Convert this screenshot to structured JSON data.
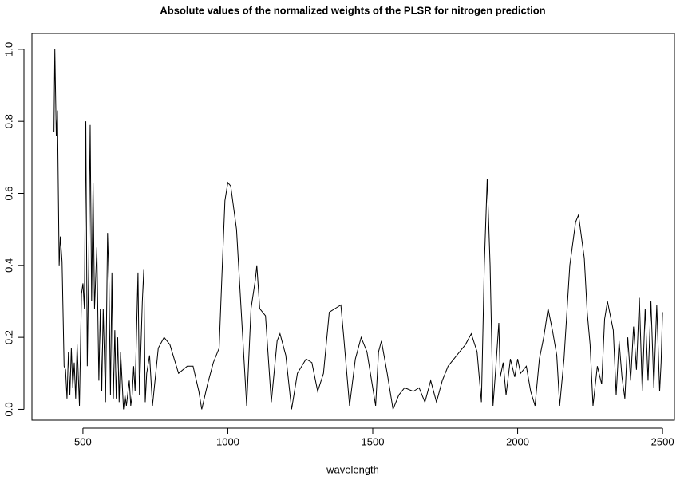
{
  "chart_data": {
    "type": "line",
    "title": "Absolute values of the normalized weights of the PLSR for nitrogen prediction",
    "x_label": "wavelength",
    "x": [
      400,
      403,
      408,
      412,
      418,
      422,
      428,
      435,
      440,
      445,
      450,
      455,
      460,
      465,
      470,
      475,
      480,
      488,
      495,
      500,
      505,
      510,
      515,
      520,
      525,
      530,
      535,
      540,
      548,
      555,
      560,
      565,
      570,
      578,
      585,
      590,
      595,
      600,
      605,
      610,
      615,
      620,
      625,
      630,
      640,
      645,
      650,
      660,
      665,
      670,
      675,
      680,
      690,
      695,
      705,
      710,
      715,
      720,
      730,
      740,
      760,
      780,
      800,
      830,
      860,
      880,
      900,
      910,
      930,
      950,
      970,
      980,
      990,
      1000,
      1010,
      1030,
      1050,
      1065,
      1080,
      1095,
      1100,
      1110,
      1130,
      1150,
      1170,
      1180,
      1200,
      1220,
      1240,
      1270,
      1290,
      1310,
      1330,
      1350,
      1370,
      1390,
      1400,
      1420,
      1440,
      1460,
      1480,
      1500,
      1510,
      1520,
      1530,
      1550,
      1570,
      1590,
      1610,
      1640,
      1660,
      1680,
      1700,
      1720,
      1740,
      1760,
      1780,
      1800,
      1820,
      1840,
      1860,
      1875,
      1885,
      1895,
      1905,
      1915,
      1925,
      1935,
      1940,
      1950,
      1960,
      1975,
      1990,
      2000,
      2010,
      2030,
      2045,
      2060,
      2075,
      2090,
      2105,
      2120,
      2135,
      2145,
      2160,
      2180,
      2200,
      2210,
      2230,
      2240,
      2250,
      2260,
      2275,
      2290,
      2300,
      2310,
      2320,
      2330,
      2340,
      2350,
      2360,
      2370,
      2380,
      2390,
      2400,
      2410,
      2420,
      2430,
      2440,
      2450,
      2460,
      2470,
      2480,
      2490,
      2495,
      2500
    ],
    "series": [
      {
        "color": "#000000",
        "values": [
          0.77,
          1.0,
          0.76,
          0.83,
          0.4,
          0.48,
          0.41,
          0.12,
          0.11,
          0.03,
          0.16,
          0.04,
          0.17,
          0.06,
          0.13,
          0.03,
          0.18,
          0.01,
          0.32,
          0.35,
          0.28,
          0.8,
          0.12,
          0.4,
          0.79,
          0.3,
          0.63,
          0.28,
          0.45,
          0.08,
          0.28,
          0.05,
          0.28,
          0.02,
          0.49,
          0.35,
          0.04,
          0.38,
          0.03,
          0.22,
          0.03,
          0.2,
          0.02,
          0.16,
          0.0,
          0.04,
          0.01,
          0.08,
          0.01,
          0.04,
          0.12,
          0.05,
          0.38,
          0.04,
          0.3,
          0.39,
          0.02,
          0.1,
          0.15,
          0.01,
          0.17,
          0.2,
          0.18,
          0.1,
          0.12,
          0.12,
          0.05,
          0.0,
          0.07,
          0.13,
          0.17,
          0.38,
          0.58,
          0.63,
          0.62,
          0.5,
          0.22,
          0.01,
          0.28,
          0.36,
          0.4,
          0.28,
          0.26,
          0.02,
          0.19,
          0.21,
          0.15,
          0.0,
          0.1,
          0.14,
          0.13,
          0.05,
          0.1,
          0.27,
          0.28,
          0.29,
          0.2,
          0.01,
          0.14,
          0.2,
          0.16,
          0.06,
          0.01,
          0.16,
          0.19,
          0.1,
          0.0,
          0.04,
          0.06,
          0.05,
          0.06,
          0.02,
          0.08,
          0.02,
          0.08,
          0.12,
          0.14,
          0.16,
          0.18,
          0.21,
          0.16,
          0.02,
          0.4,
          0.64,
          0.4,
          0.01,
          0.12,
          0.24,
          0.09,
          0.13,
          0.04,
          0.14,
          0.09,
          0.14,
          0.1,
          0.12,
          0.05,
          0.01,
          0.14,
          0.2,
          0.28,
          0.22,
          0.15,
          0.01,
          0.14,
          0.4,
          0.52,
          0.54,
          0.42,
          0.27,
          0.18,
          0.01,
          0.12,
          0.07,
          0.25,
          0.3,
          0.26,
          0.22,
          0.04,
          0.19,
          0.09,
          0.03,
          0.2,
          0.08,
          0.23,
          0.11,
          0.31,
          0.05,
          0.28,
          0.08,
          0.3,
          0.06,
          0.29,
          0.05,
          0.13,
          0.27
        ]
      }
    ],
    "xlim": [
      324,
      2541
    ],
    "ylim": [
      -0.03,
      1.044
    ],
    "xticks": [
      500,
      1000,
      1500,
      2000,
      2500
    ],
    "yticks": [
      {
        "value": 0,
        "label": "0.0"
      },
      0.2,
      0.4,
      0.6,
      0.8,
      {
        "value": 1,
        "label": "1.0"
      }
    ]
  }
}
